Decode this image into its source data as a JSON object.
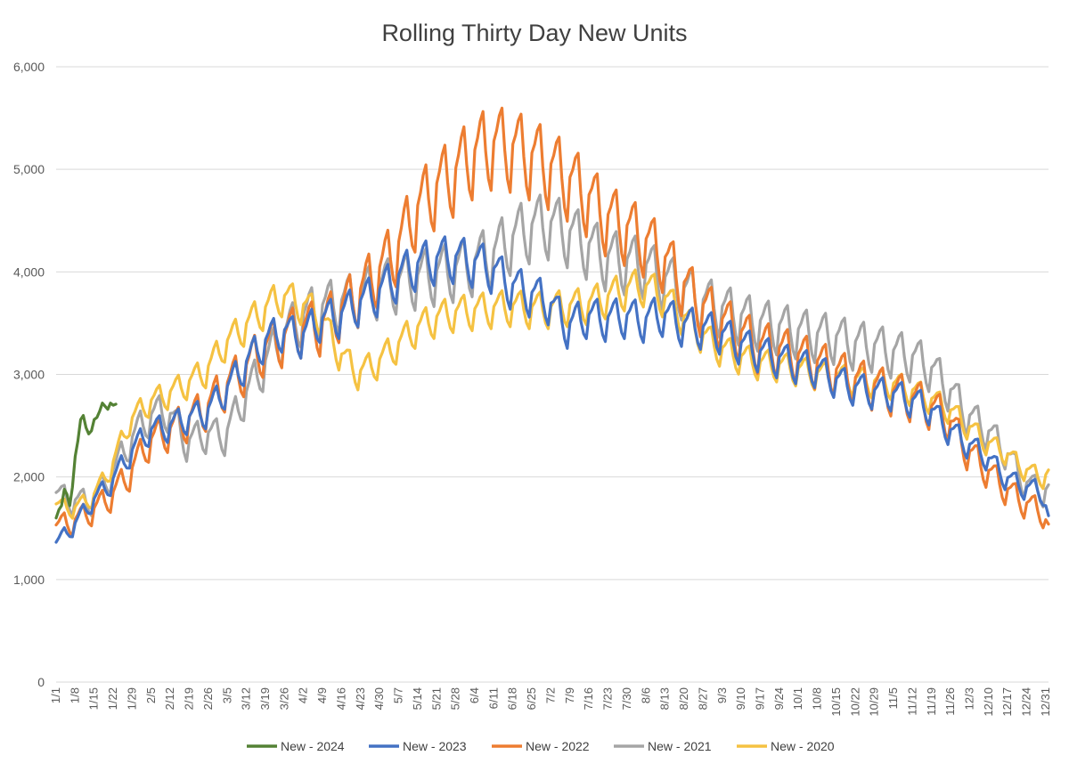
{
  "chart_data": {
    "type": "line",
    "title": "Rolling Thirty Day New Units",
    "xlabel": "",
    "ylabel": "",
    "ylim": [
      0,
      6000
    ],
    "yticks": [
      "0",
      "1,000",
      "2,000",
      "3,000",
      "4,000",
      "5,000",
      "6,000"
    ],
    "ytick_values": [
      0,
      1000,
      2000,
      3000,
      4000,
      5000,
      6000
    ],
    "xlim": [
      1,
      366
    ],
    "x_tick_labels": [
      "1/1",
      "1/8",
      "1/15",
      "1/22",
      "1/29",
      "2/5",
      "2/12",
      "2/19",
      "2/26",
      "3/5",
      "3/12",
      "3/19",
      "3/26",
      "4/2",
      "4/9",
      "4/16",
      "4/23",
      "4/30",
      "5/7",
      "5/14",
      "5/21",
      "5/28",
      "6/4",
      "6/11",
      "6/18",
      "6/25",
      "7/2",
      "7/9",
      "7/16",
      "7/23",
      "7/30",
      "8/6",
      "8/13",
      "8/20",
      "8/27",
      "9/3",
      "9/10",
      "9/17",
      "9/24",
      "10/1",
      "10/8",
      "10/15",
      "10/22",
      "10/29",
      "11/5",
      "11/12",
      "11/19",
      "11/26",
      "12/3",
      "12/10",
      "12/17",
      "12/24",
      "12/31"
    ],
    "x_tick_days": [
      1,
      8,
      15,
      22,
      29,
      36,
      43,
      50,
      57,
      64,
      71,
      78,
      85,
      92,
      99,
      106,
      113,
      120,
      127,
      134,
      141,
      148,
      155,
      162,
      169,
      176,
      183,
      190,
      197,
      204,
      211,
      218,
      225,
      232,
      239,
      246,
      253,
      260,
      267,
      274,
      281,
      288,
      295,
      302,
      309,
      316,
      323,
      330,
      337,
      344,
      351,
      358,
      365
    ],
    "legend_position": "bottom",
    "gridlines": true,
    "series": [
      {
        "name": "New - 2024",
        "color": "#548235",
        "x": [
          1,
          2,
          3,
          4,
          5,
          6,
          7,
          8,
          9,
          10,
          11,
          12,
          13,
          14,
          15,
          16,
          17,
          18,
          19,
          20,
          21,
          22,
          23
        ],
        "y": [
          1600,
          1680,
          1720,
          1880,
          1830,
          1720,
          1900,
          2200,
          2350,
          2560,
          2600,
          2480,
          2420,
          2450,
          2560,
          2580,
          2640,
          2720,
          2690,
          2660,
          2720,
          2700,
          2710
        ]
      },
      {
        "name": "New - 2023",
        "color": "#4472C4",
        "x": [
          1,
          7,
          14,
          21,
          28,
          35,
          42,
          49,
          56,
          63,
          70,
          77,
          84,
          91,
          98,
          105,
          112,
          119,
          126,
          133,
          140,
          147,
          154,
          161,
          168,
          175,
          182,
          189,
          196,
          203,
          210,
          217,
          224,
          231,
          238,
          245,
          252,
          259,
          266,
          273,
          280,
          287,
          294,
          301,
          308,
          315,
          322,
          329,
          336,
          343,
          350,
          357,
          362,
          364,
          366
        ],
        "y": [
          1330,
          1480,
          1720,
          1900,
          2180,
          2400,
          2440,
          2520,
          2580,
          2780,
          3020,
          3240,
          3360,
          3300,
          3460,
          3500,
          3620,
          3720,
          3860,
          3980,
          4040,
          4060,
          4020,
          3960,
          3800,
          3720,
          3640,
          3400,
          3500,
          3470,
          3500,
          3460,
          3520,
          3420,
          3390,
          3340,
          3240,
          3160,
          3100,
          3040,
          3000,
          2900,
          2820,
          2780,
          2760,
          2700,
          2620,
          2420,
          2280,
          2160,
          1960,
          1860,
          1840,
          1800,
          1560
        ],
        "peak_swing": 230
      },
      {
        "name": "New - 2022",
        "color": "#ED7D31",
        "x": [
          1,
          7,
          14,
          21,
          28,
          35,
          42,
          49,
          56,
          63,
          70,
          77,
          84,
          91,
          98,
          105,
          112,
          119,
          126,
          133,
          140,
          147,
          154,
          161,
          168,
          175,
          182,
          189,
          196,
          203,
          210,
          217,
          224,
          231,
          238,
          245,
          252,
          259,
          266,
          273,
          280,
          287,
          294,
          301,
          308,
          315,
          322,
          329,
          336,
          343,
          350,
          357,
          362,
          364,
          366
        ],
        "y": [
          1480,
          1520,
          1620,
          1760,
          1980,
          2280,
          2380,
          2480,
          2600,
          2800,
          2960,
          3160,
          3260,
          3360,
          3380,
          3520,
          3680,
          3880,
          4100,
          4460,
          4680,
          4820,
          5000,
          5100,
          5080,
          5000,
          4900,
          4780,
          4620,
          4420,
          4320,
          4200,
          4040,
          3800,
          3580,
          3440,
          3320,
          3200,
          3160,
          3100,
          3040,
          2960,
          2880,
          2820,
          2760,
          2700,
          2620,
          2500,
          2200,
          2020,
          1840,
          1700,
          1640,
          1600,
          1460
        ],
        "peak_swing": 320
      },
      {
        "name": "New - 2021",
        "color": "#A5A5A5",
        "x": [
          1,
          7,
          14,
          21,
          28,
          35,
          42,
          49,
          56,
          63,
          70,
          77,
          84,
          91,
          98,
          105,
          112,
          119,
          126,
          133,
          140,
          147,
          154,
          161,
          168,
          175,
          182,
          189,
          196,
          203,
          210,
          217,
          224,
          231,
          238,
          245,
          252,
          259,
          266,
          273,
          280,
          287,
          294,
          301,
          308,
          315,
          322,
          329,
          336,
          343,
          350,
          357,
          362,
          364,
          366
        ],
        "y": [
          1790,
          1720,
          1720,
          1960,
          2280,
          2520,
          2580,
          2280,
          2360,
          2340,
          2700,
          3000,
          3280,
          3460,
          3560,
          3600,
          3660,
          3740,
          3800,
          3840,
          3880,
          3920,
          3980,
          4060,
          4200,
          4320,
          4360,
          4280,
          4160,
          4040,
          4000,
          3960,
          3840,
          3740,
          3620,
          3560,
          3480,
          3420,
          3380,
          3340,
          3300,
          3280,
          3220,
          3200,
          3140,
          3100,
          3000,
          2800,
          2540,
          2400,
          2200,
          1900,
          1830,
          1810,
          1830
        ],
        "peak_swing": 300
      },
      {
        "name": "New - 2020",
        "color": "#F5C242",
        "x": [
          1,
          7,
          14,
          21,
          28,
          35,
          42,
          49,
          56,
          63,
          70,
          77,
          84,
          91,
          98,
          105,
          112,
          119,
          126,
          133,
          140,
          147,
          154,
          161,
          168,
          175,
          182,
          189,
          196,
          203,
          210,
          217,
          224,
          231,
          238,
          245,
          252,
          259,
          266,
          273,
          280,
          287,
          294,
          301,
          308,
          315,
          322,
          329,
          336,
          343,
          350,
          357,
          362,
          364,
          366
        ],
        "y": [
          1700,
          1660,
          1760,
          2040,
          2500,
          2680,
          2760,
          2860,
          2980,
          3240,
          3400,
          3560,
          3700,
          3620,
          3520,
          3160,
          2960,
          3060,
          3220,
          3380,
          3480,
          3540,
          3560,
          3580,
          3600,
          3580,
          3580,
          3600,
          3620,
          3680,
          3760,
          3800,
          3700,
          3520,
          3340,
          3200,
          3120,
          3060,
          3040,
          3000,
          2960,
          2920,
          2900,
          2880,
          2860,
          2800,
          2720,
          2620,
          2460,
          2300,
          2200,
          2040,
          1980,
          1960,
          2000
        ],
        "peak_swing": 200
      }
    ]
  }
}
